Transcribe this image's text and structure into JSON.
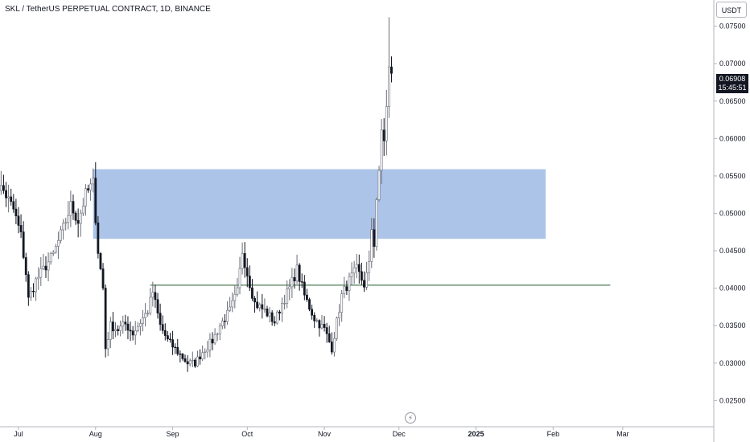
{
  "header": {
    "title": "SKL / TetherUS PERPETUAL CONTRACT, 1D, BINANCE",
    "currency_button": "USDT"
  },
  "last_price": {
    "value": "0.06908",
    "countdown": "15:45:51"
  },
  "colors": {
    "up": "#6a6d78",
    "down": "#131722",
    "zone": "#a9c1e8",
    "support_line": "#1f5a2a",
    "grid": "#e0e3eb"
  },
  "live_icon": "lightning-bolt-icon",
  "chart_data": {
    "type": "candlestick",
    "y_range": [
      0.0215,
      0.0785
    ],
    "y_ticks": [
      "0.02500",
      "0.03000",
      "0.03500",
      "0.04000",
      "0.04500",
      "0.05000",
      "0.05500",
      "0.06000",
      "0.06500",
      "0.07000",
      "0.07500"
    ],
    "x_ticks": [
      {
        "label": "Jul",
        "date": "2024-07-01",
        "bold": false
      },
      {
        "label": "Aug",
        "date": "2024-08-01",
        "bold": false
      },
      {
        "label": "Sep",
        "date": "2024-09-01",
        "bold": false
      },
      {
        "label": "Oct",
        "date": "2024-10-01",
        "bold": false
      },
      {
        "label": "Nov",
        "date": "2024-11-01",
        "bold": false
      },
      {
        "label": "Dec",
        "date": "2024-12-01",
        "bold": false
      },
      {
        "label": "2025",
        "date": "2025-01-01",
        "bold": true
      },
      {
        "label": "Feb",
        "date": "2025-02-01",
        "bold": false
      },
      {
        "label": "Mar",
        "date": "2025-03-01",
        "bold": false
      }
    ],
    "zone": {
      "start": "2024-07-31",
      "end": "2025-01-29",
      "low": 0.0466,
      "high": 0.0559
    },
    "support": {
      "start": "2024-08-23",
      "end": "2025-02-24",
      "price": 0.0404
    },
    "series_start": "2024-06-20",
    "anchors": [
      [
        "2024-06-20",
        0.0545
      ],
      [
        "2024-06-25",
        0.053
      ],
      [
        "2024-06-29",
        0.0505
      ],
      [
        "2024-07-02",
        0.047
      ],
      [
        "2024-07-04",
        0.042
      ],
      [
        "2024-07-05",
        0.0385
      ],
      [
        "2024-07-08",
        0.041
      ],
      [
        "2024-07-12",
        0.043
      ],
      [
        "2024-07-15",
        0.0445
      ],
      [
        "2024-07-19",
        0.048
      ],
      [
        "2024-07-22",
        0.051
      ],
      [
        "2024-07-25",
        0.049
      ],
      [
        "2024-07-28",
        0.0525
      ],
      [
        "2024-07-31",
        0.054
      ],
      [
        "2024-08-02",
        0.045
      ],
      [
        "2024-08-04",
        0.04
      ],
      [
        "2024-08-05",
        0.032
      ],
      [
        "2024-08-07",
        0.035
      ],
      [
        "2024-08-10",
        0.0345
      ],
      [
        "2024-08-13",
        0.0352
      ],
      [
        "2024-08-16",
        0.034
      ],
      [
        "2024-08-19",
        0.0355
      ],
      [
        "2024-08-22",
        0.037
      ],
      [
        "2024-08-24",
        0.0395
      ],
      [
        "2024-08-27",
        0.035
      ],
      [
        "2024-08-30",
        0.033
      ],
      [
        "2024-09-03",
        0.0315
      ],
      [
        "2024-09-07",
        0.03
      ],
      [
        "2024-09-10",
        0.03
      ],
      [
        "2024-09-13",
        0.0315
      ],
      [
        "2024-09-17",
        0.033
      ],
      [
        "2024-09-20",
        0.035
      ],
      [
        "2024-09-24",
        0.037
      ],
      [
        "2024-09-27",
        0.0395
      ],
      [
        "2024-09-29",
        0.045
      ],
      [
        "2024-10-01",
        0.042
      ],
      [
        "2024-10-04",
        0.038
      ],
      [
        "2024-10-08",
        0.037
      ],
      [
        "2024-10-12",
        0.0355
      ],
      [
        "2024-10-15",
        0.038
      ],
      [
        "2024-10-18",
        0.04
      ],
      [
        "2024-10-21",
        0.0425
      ],
      [
        "2024-10-24",
        0.039
      ],
      [
        "2024-10-28",
        0.036
      ],
      [
        "2024-11-01",
        0.0345
      ],
      [
        "2024-11-04",
        0.032
      ],
      [
        "2024-11-06",
        0.0355
      ],
      [
        "2024-11-08",
        0.039
      ],
      [
        "2024-11-11",
        0.041
      ],
      [
        "2024-11-14",
        0.0425
      ],
      [
        "2024-11-17",
        0.0405
      ],
      [
        "2024-11-19",
        0.043
      ],
      [
        "2024-11-20",
        0.048
      ],
      [
        "2024-11-21",
        0.046
      ],
      [
        "2024-11-22",
        0.052
      ],
      [
        "2024-11-23",
        0.055
      ],
      [
        "2024-11-24",
        0.061
      ],
      [
        "2024-11-25",
        0.06
      ],
      [
        "2024-11-26",
        0.064
      ],
      [
        "2024-11-27",
        0.069
      ],
      [
        "2024-11-28",
        0.0691
      ]
    ]
  }
}
